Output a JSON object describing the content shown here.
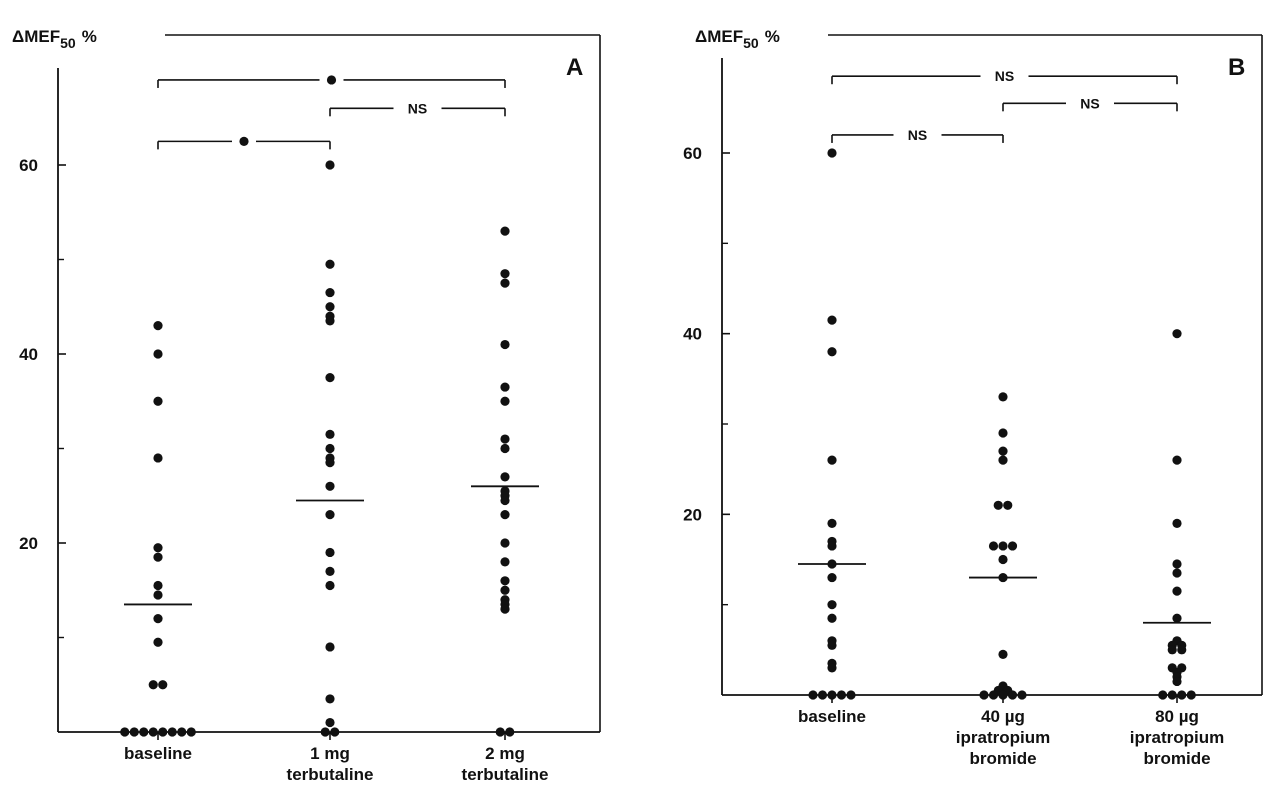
{
  "chart_data": [
    {
      "type": "scatter",
      "panel_label": "A",
      "ylabel_prefix": "ΔMEF",
      "ylabel_sub": "50",
      "ylabel_suffix": "%",
      "ylim": [
        0,
        70
      ],
      "yticks": [
        20,
        40,
        60
      ],
      "yticks_text": [
        "20",
        "40",
        "60"
      ],
      "categories": [
        {
          "lines": [
            "baseline"
          ]
        },
        {
          "lines": [
            "1 mg",
            "terbutaline"
          ]
        },
        {
          "lines": [
            "2 mg",
            "terbutaline"
          ]
        }
      ],
      "series": [
        {
          "category": 0,
          "mean": 13.5,
          "values": [
            43,
            40,
            35,
            29,
            19.5,
            18.5,
            15.5,
            14.5,
            12,
            9.5,
            5,
            5,
            0,
            0,
            0,
            0,
            0,
            0,
            0,
            0
          ]
        },
        {
          "category": 1,
          "mean": 24.5,
          "values": [
            60,
            49.5,
            46.5,
            45,
            44,
            43.5,
            37.5,
            31.5,
            30,
            29,
            28.5,
            26,
            23,
            19,
            17,
            15.5,
            9,
            3.5,
            1,
            0,
            0
          ]
        },
        {
          "category": 2,
          "mean": 26,
          "values": [
            53,
            48.5,
            47.5,
            41,
            36.5,
            35,
            31,
            30,
            27,
            25.5,
            25,
            24.5,
            23,
            20,
            18,
            16,
            15,
            14,
            13.5,
            13,
            0,
            0
          ]
        }
      ],
      "brackets": [
        {
          "from": 0,
          "to": 2,
          "y": 69,
          "label": "*"
        },
        {
          "from": 1,
          "to": 2,
          "y": 66,
          "label": "NS"
        },
        {
          "from": 0,
          "to": 1,
          "y": 62.5,
          "label": "*"
        }
      ]
    },
    {
      "type": "scatter",
      "panel_label": "B",
      "ylabel_prefix": "ΔMEF",
      "ylabel_sub": "50",
      "ylabel_suffix": "%",
      "ylim": [
        0,
        70
      ],
      "yticks": [
        20,
        40,
        60
      ],
      "yticks_text": [
        "20",
        "40",
        "60"
      ],
      "categories": [
        {
          "lines": [
            "baseline"
          ]
        },
        {
          "lines": [
            "40 µg",
            "ipratropium",
            "bromide"
          ]
        },
        {
          "lines": [
            "80 µg",
            "ipratropium",
            "bromide"
          ]
        }
      ],
      "series": [
        {
          "category": 0,
          "mean": 14.5,
          "values": [
            60,
            41.5,
            38,
            26,
            19,
            17,
            16.5,
            14.5,
            13,
            10,
            8.5,
            6,
            5.5,
            3.5,
            3,
            0,
            0,
            0,
            0,
            0
          ]
        },
        {
          "category": 1,
          "mean": 13,
          "values": [
            33,
            29,
            27,
            26,
            21,
            21,
            16.5,
            16.5,
            16.5,
            15,
            13,
            4.5,
            1,
            0.5,
            0.5,
            0,
            0,
            0,
            0,
            0
          ]
        },
        {
          "category": 2,
          "mean": 8,
          "values": [
            40,
            26,
            19,
            14.5,
            13.5,
            11.5,
            8.5,
            6,
            5.5,
            5.5,
            5,
            5,
            3,
            3,
            2.5,
            2,
            1.5,
            0,
            0,
            0,
            0
          ]
        }
      ],
      "brackets": [
        {
          "from": 0,
          "to": 2,
          "y": 68.5,
          "label": "NS"
        },
        {
          "from": 1,
          "to": 2,
          "y": 65.5,
          "label": "NS"
        },
        {
          "from": 0,
          "to": 1,
          "y": 62,
          "label": "NS"
        }
      ]
    }
  ]
}
